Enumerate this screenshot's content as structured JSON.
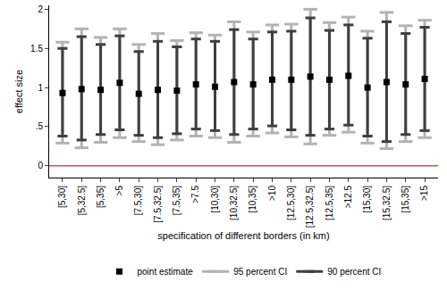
{
  "chart_data": {
    "type": "errorbar",
    "x_label": "specification of different borders (in km)",
    "y_label": "effect size",
    "categories": [
      "[5,30]",
      "[5,32.5]",
      "[5,35]",
      ">5",
      "[7.5,30]",
      "[7.5,32.5]",
      "[7.5,35]",
      ">7.5",
      "[10,30]",
      "[10,32.5]",
      "[10,35]",
      ">10",
      "[12.5,30]",
      "[12.5,32.5]",
      "[12.5,35]",
      ">12.5",
      "[15,30]",
      "[15,32.5]",
      "[15,35]",
      ">15"
    ],
    "series": [
      {
        "name": "95 percent CI",
        "color": "#b3b3b3",
        "line_style": "solid",
        "lower": [
          0.29,
          0.23,
          0.3,
          0.36,
          0.31,
          0.27,
          0.33,
          0.38,
          0.36,
          0.3,
          0.38,
          0.42,
          0.37,
          0.28,
          0.39,
          0.43,
          0.29,
          0.22,
          0.31,
          0.36
        ],
        "upper": [
          1.58,
          1.75,
          1.64,
          1.75,
          1.55,
          1.69,
          1.6,
          1.7,
          1.67,
          1.84,
          1.71,
          1.8,
          1.81,
          2.0,
          1.83,
          1.9,
          1.72,
          1.96,
          1.79,
          1.86
        ]
      },
      {
        "name": "90 percent CI",
        "color": "#3f3f3f",
        "line_style": "solid",
        "lower": [
          0.38,
          0.33,
          0.4,
          0.46,
          0.39,
          0.36,
          0.41,
          0.47,
          0.45,
          0.4,
          0.47,
          0.51,
          0.46,
          0.39,
          0.47,
          0.52,
          0.38,
          0.31,
          0.4,
          0.45
        ],
        "upper": [
          1.5,
          1.65,
          1.55,
          1.66,
          1.46,
          1.59,
          1.52,
          1.62,
          1.59,
          1.74,
          1.62,
          1.71,
          1.72,
          1.89,
          1.73,
          1.8,
          1.63,
          1.84,
          1.69,
          1.77
        ]
      },
      {
        "name": "point estimate",
        "color": "#000000",
        "marker": "square",
        "values": [
          0.93,
          0.98,
          0.97,
          1.06,
          0.92,
          0.97,
          0.96,
          1.04,
          1.01,
          1.07,
          1.04,
          1.1,
          1.1,
          1.14,
          1.1,
          1.15,
          1.0,
          1.07,
          1.04,
          1.11
        ]
      }
    ],
    "legend_order": [
      "point estimate",
      "95 percent CI",
      "90 percent CI"
    ],
    "reference_line": {
      "value": 0,
      "color": "#e8474a"
    },
    "ylim": [
      -0.15,
      2.05
    ],
    "yticks": [
      0,
      {
        "value": 0.5,
        "label": ".5"
      },
      1,
      1.5,
      2
    ],
    "grid": false,
    "legend": "bottom"
  }
}
